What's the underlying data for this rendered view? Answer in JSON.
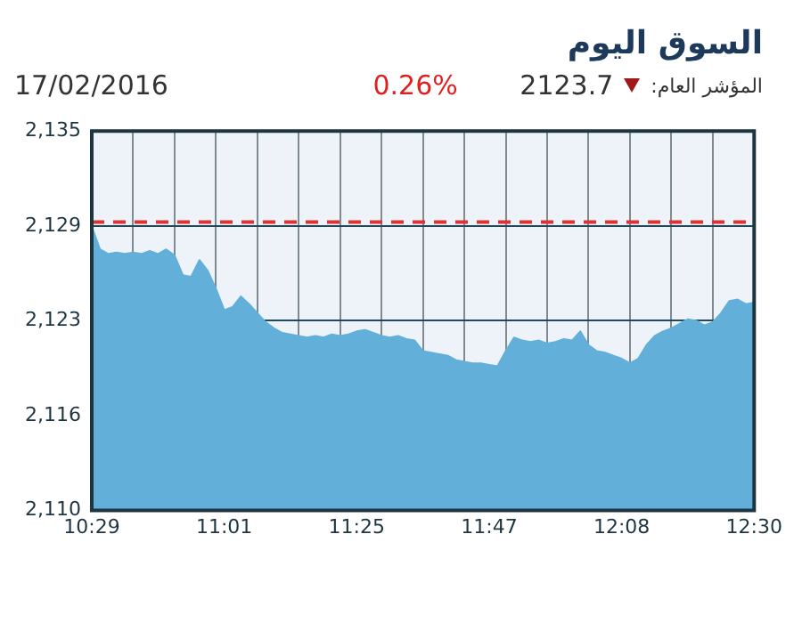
{
  "chart_data": {
    "type": "area",
    "title": "السوق اليوم",
    "annotations": [
      "المؤشر العام:",
      "2123.7",
      "0.26%",
      "17/02/2016"
    ],
    "categories": [
      "10:29",
      null,
      null,
      null,
      null,
      null,
      null,
      null,
      null,
      null,
      null,
      null,
      null,
      null,
      null,
      null,
      "11:01",
      null,
      null,
      null,
      null,
      null,
      null,
      null,
      null,
      null,
      null,
      null,
      null,
      null,
      null,
      null,
      "11:25",
      null,
      null,
      null,
      null,
      null,
      null,
      null,
      null,
      null,
      null,
      null,
      null,
      null,
      null,
      null,
      "11:47",
      null,
      null,
      null,
      null,
      null,
      null,
      null,
      null,
      null,
      null,
      null,
      null,
      null,
      null,
      null,
      "12:08",
      null,
      null,
      null,
      null,
      null,
      null,
      null,
      null,
      null,
      null,
      null,
      null,
      null,
      null,
      null,
      "12:30"
    ],
    "series": [
      {
        "color": "#62b0da",
        "values": [
          2128.7,
          2127.2,
          2126.9,
          2127.0,
          2126.9,
          2127.0,
          2126.9,
          2127.1,
          2126.9,
          2127.2,
          2126.8,
          2125.5,
          2125.4,
          2126.5,
          2125.8,
          2124.6,
          2123.2,
          2123.4,
          2124.1,
          2123.6,
          2123.0,
          2122.4,
          2122.0,
          2121.7,
          2121.6,
          2121.5,
          2121.4,
          2121.5,
          2121.4,
          2121.6,
          2121.5,
          2121.6,
          2121.8,
          2121.9,
          2121.7,
          2121.5,
          2121.4,
          2121.5,
          2121.3,
          2121.2,
          2120.5,
          2120.4,
          2120.3,
          2120.2,
          2119.9,
          2119.8,
          2119.7,
          2119.7,
          2119.6,
          2119.5,
          2120.5,
          2121.4,
          2121.2,
          2121.1,
          2121.2,
          2121.0,
          2121.1,
          2121.3,
          2121.2,
          2121.8,
          2120.9,
          2120.5,
          2120.4,
          2120.2,
          2120.0,
          2119.7,
          2120.0,
          2120.9,
          2121.5,
          2121.8,
          2122.0,
          2122.3,
          2122.6,
          2122.5,
          2122.2,
          2122.4,
          2123.0,
          2123.8,
          2123.9,
          2123.6,
          2123.7
        ]
      }
    ],
    "ylim": [
      2110,
      2135
    ],
    "yticks": [
      {
        "value": 2110,
        "label": "2,110"
      },
      {
        "value": 2116.25,
        "label": "2,116"
      },
      {
        "value": 2122.5,
        "label": "2,123"
      },
      {
        "value": 2128.75,
        "label": "2,129"
      },
      {
        "value": 2135,
        "label": "2,135"
      }
    ],
    "ref_lines": [
      {
        "axis": "y",
        "value": 2129,
        "color": "#e03030",
        "line_style": "dashed"
      }
    ],
    "grid": true,
    "legend": false,
    "marker": "none"
  }
}
